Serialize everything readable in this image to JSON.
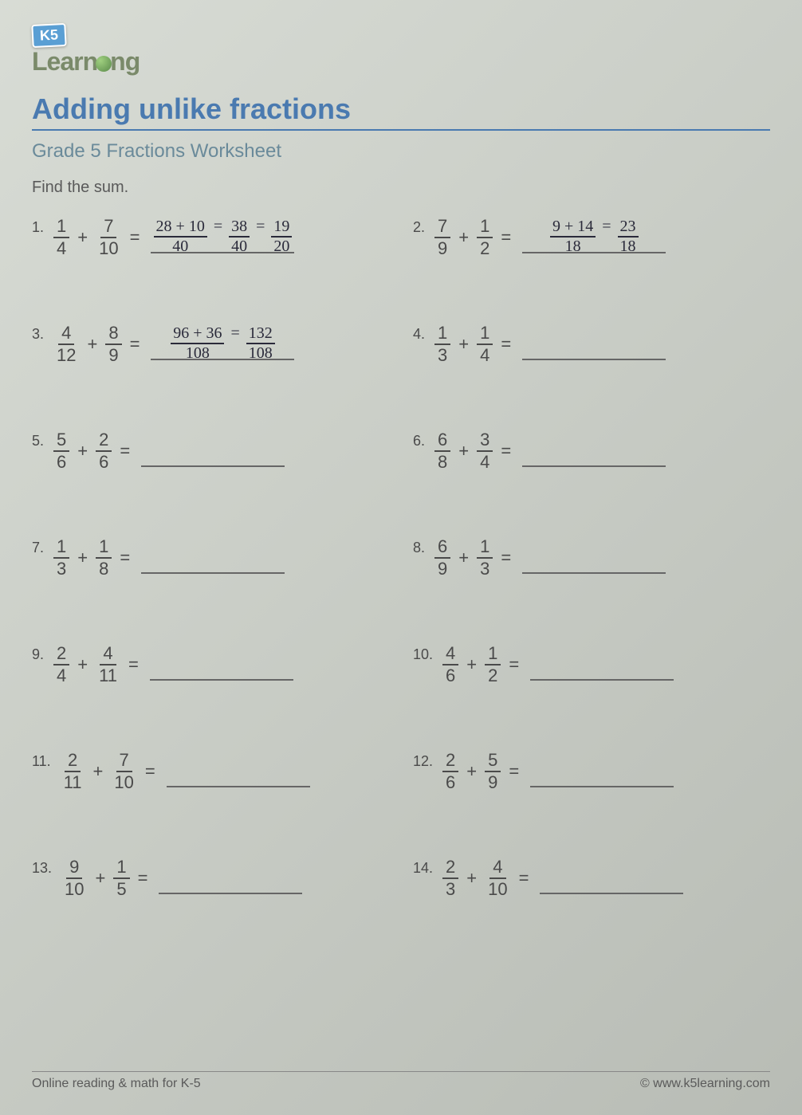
{
  "logo": {
    "badge": "K5",
    "text_part1": "Learn",
    "text_part2": "ng"
  },
  "title": "Adding unlike fractions",
  "subtitle": "Grade 5 Fractions Worksheet",
  "instruction": "Find the sum.",
  "problems": [
    {
      "num": "1.",
      "f1n": "1",
      "f1d": "4",
      "f2n": "7",
      "f2d": "10",
      "answer": {
        "work_num": "28 + 10",
        "work_den": "40",
        "mid_num": "38",
        "mid_den": "40",
        "final_num": "19",
        "final_den": "20"
      }
    },
    {
      "num": "2.",
      "f1n": "7",
      "f1d": "9",
      "f2n": "1",
      "f2d": "2",
      "answer": {
        "work_num": "9 + 14",
        "work_den": "18",
        "final_num": "23",
        "final_den": "18"
      }
    },
    {
      "num": "3.",
      "f1n": "4",
      "f1d": "12",
      "f2n": "8",
      "f2d": "9",
      "answer": {
        "work_num": "96 + 36",
        "work_den": "108",
        "final_num": "132",
        "final_den": "108"
      }
    },
    {
      "num": "4.",
      "f1n": "1",
      "f1d": "3",
      "f2n": "1",
      "f2d": "4",
      "answer": null
    },
    {
      "num": "5.",
      "f1n": "5",
      "f1d": "6",
      "f2n": "2",
      "f2d": "6",
      "answer": null
    },
    {
      "num": "6.",
      "f1n": "6",
      "f1d": "8",
      "f2n": "3",
      "f2d": "4",
      "answer": null
    },
    {
      "num": "7.",
      "f1n": "1",
      "f1d": "3",
      "f2n": "1",
      "f2d": "8",
      "answer": null
    },
    {
      "num": "8.",
      "f1n": "6",
      "f1d": "9",
      "f2n": "1",
      "f2d": "3",
      "answer": null
    },
    {
      "num": "9.",
      "f1n": "2",
      "f1d": "4",
      "f2n": "4",
      "f2d": "11",
      "answer": null
    },
    {
      "num": "10.",
      "f1n": "4",
      "f1d": "6",
      "f2n": "1",
      "f2d": "2",
      "answer": null
    },
    {
      "num": "11.",
      "f1n": "2",
      "f1d": "11",
      "f2n": "7",
      "f2d": "10",
      "answer": null
    },
    {
      "num": "12.",
      "f1n": "2",
      "f1d": "6",
      "f2n": "5",
      "f2d": "9",
      "answer": null
    },
    {
      "num": "13.",
      "f1n": "9",
      "f1d": "10",
      "f2n": "1",
      "f2d": "5",
      "answer": null
    },
    {
      "num": "14.",
      "f1n": "2",
      "f1d": "3",
      "f2n": "4",
      "f2d": "10",
      "answer": null
    }
  ],
  "footer": {
    "left": "Online reading & math for K-5",
    "right": "© www.k5learning.com"
  },
  "colors": {
    "title_color": "#4a7ab0",
    "subtitle_color": "#6a8a9a",
    "text_color": "#4a4a4a",
    "background": "#d0d4cd"
  }
}
